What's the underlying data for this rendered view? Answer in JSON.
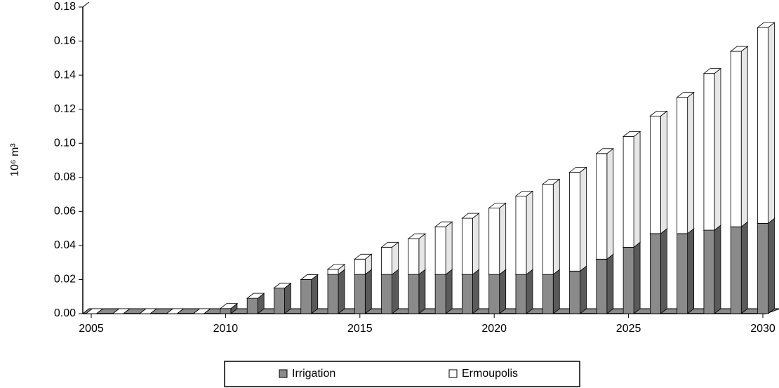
{
  "chart_data": {
    "type": "bar",
    "stacked": true,
    "ylabel": "10⁶ m³",
    "categories": [
      "2005",
      null,
      null,
      null,
      null,
      "2010",
      null,
      null,
      null,
      null,
      "2015",
      null,
      null,
      null,
      null,
      "2020",
      null,
      null,
      null,
      null,
      "2025",
      null,
      null,
      null,
      null,
      "2030"
    ],
    "series": [
      {
        "name": "Irrigation",
        "color": "#8a8a8a",
        "values": [
          0,
          0,
          0,
          0,
          0,
          0.003,
          0.009,
          0.015,
          0.02,
          0.023,
          0.023,
          0.023,
          0.023,
          0.023,
          0.023,
          0.023,
          0.023,
          0.023,
          0.025,
          0.032,
          0.039,
          0.047,
          0.047,
          0.049,
          0.051,
          0.053
        ]
      },
      {
        "name": "Ermoupolis",
        "color": "#ffffff",
        "values": [
          0,
          0,
          0,
          0,
          0,
          0,
          0,
          0,
          0,
          0.003,
          0.009,
          0.016,
          0.021,
          0.028,
          0.033,
          0.039,
          0.046,
          0.053,
          0.058,
          0.062,
          0.065,
          0.069,
          0.08,
          0.092,
          0.103,
          0.115
        ]
      }
    ],
    "ylim": [
      0,
      0.18
    ],
    "yticks": [
      {
        "value": 0,
        "label": "0.00"
      },
      0.02,
      0.04,
      0.06,
      0.08,
      {
        "value": 0.1,
        "label": "0.10"
      },
      0.12,
      0.14,
      0.16,
      0.18
    ],
    "grid": false,
    "legend": "bottom"
  }
}
